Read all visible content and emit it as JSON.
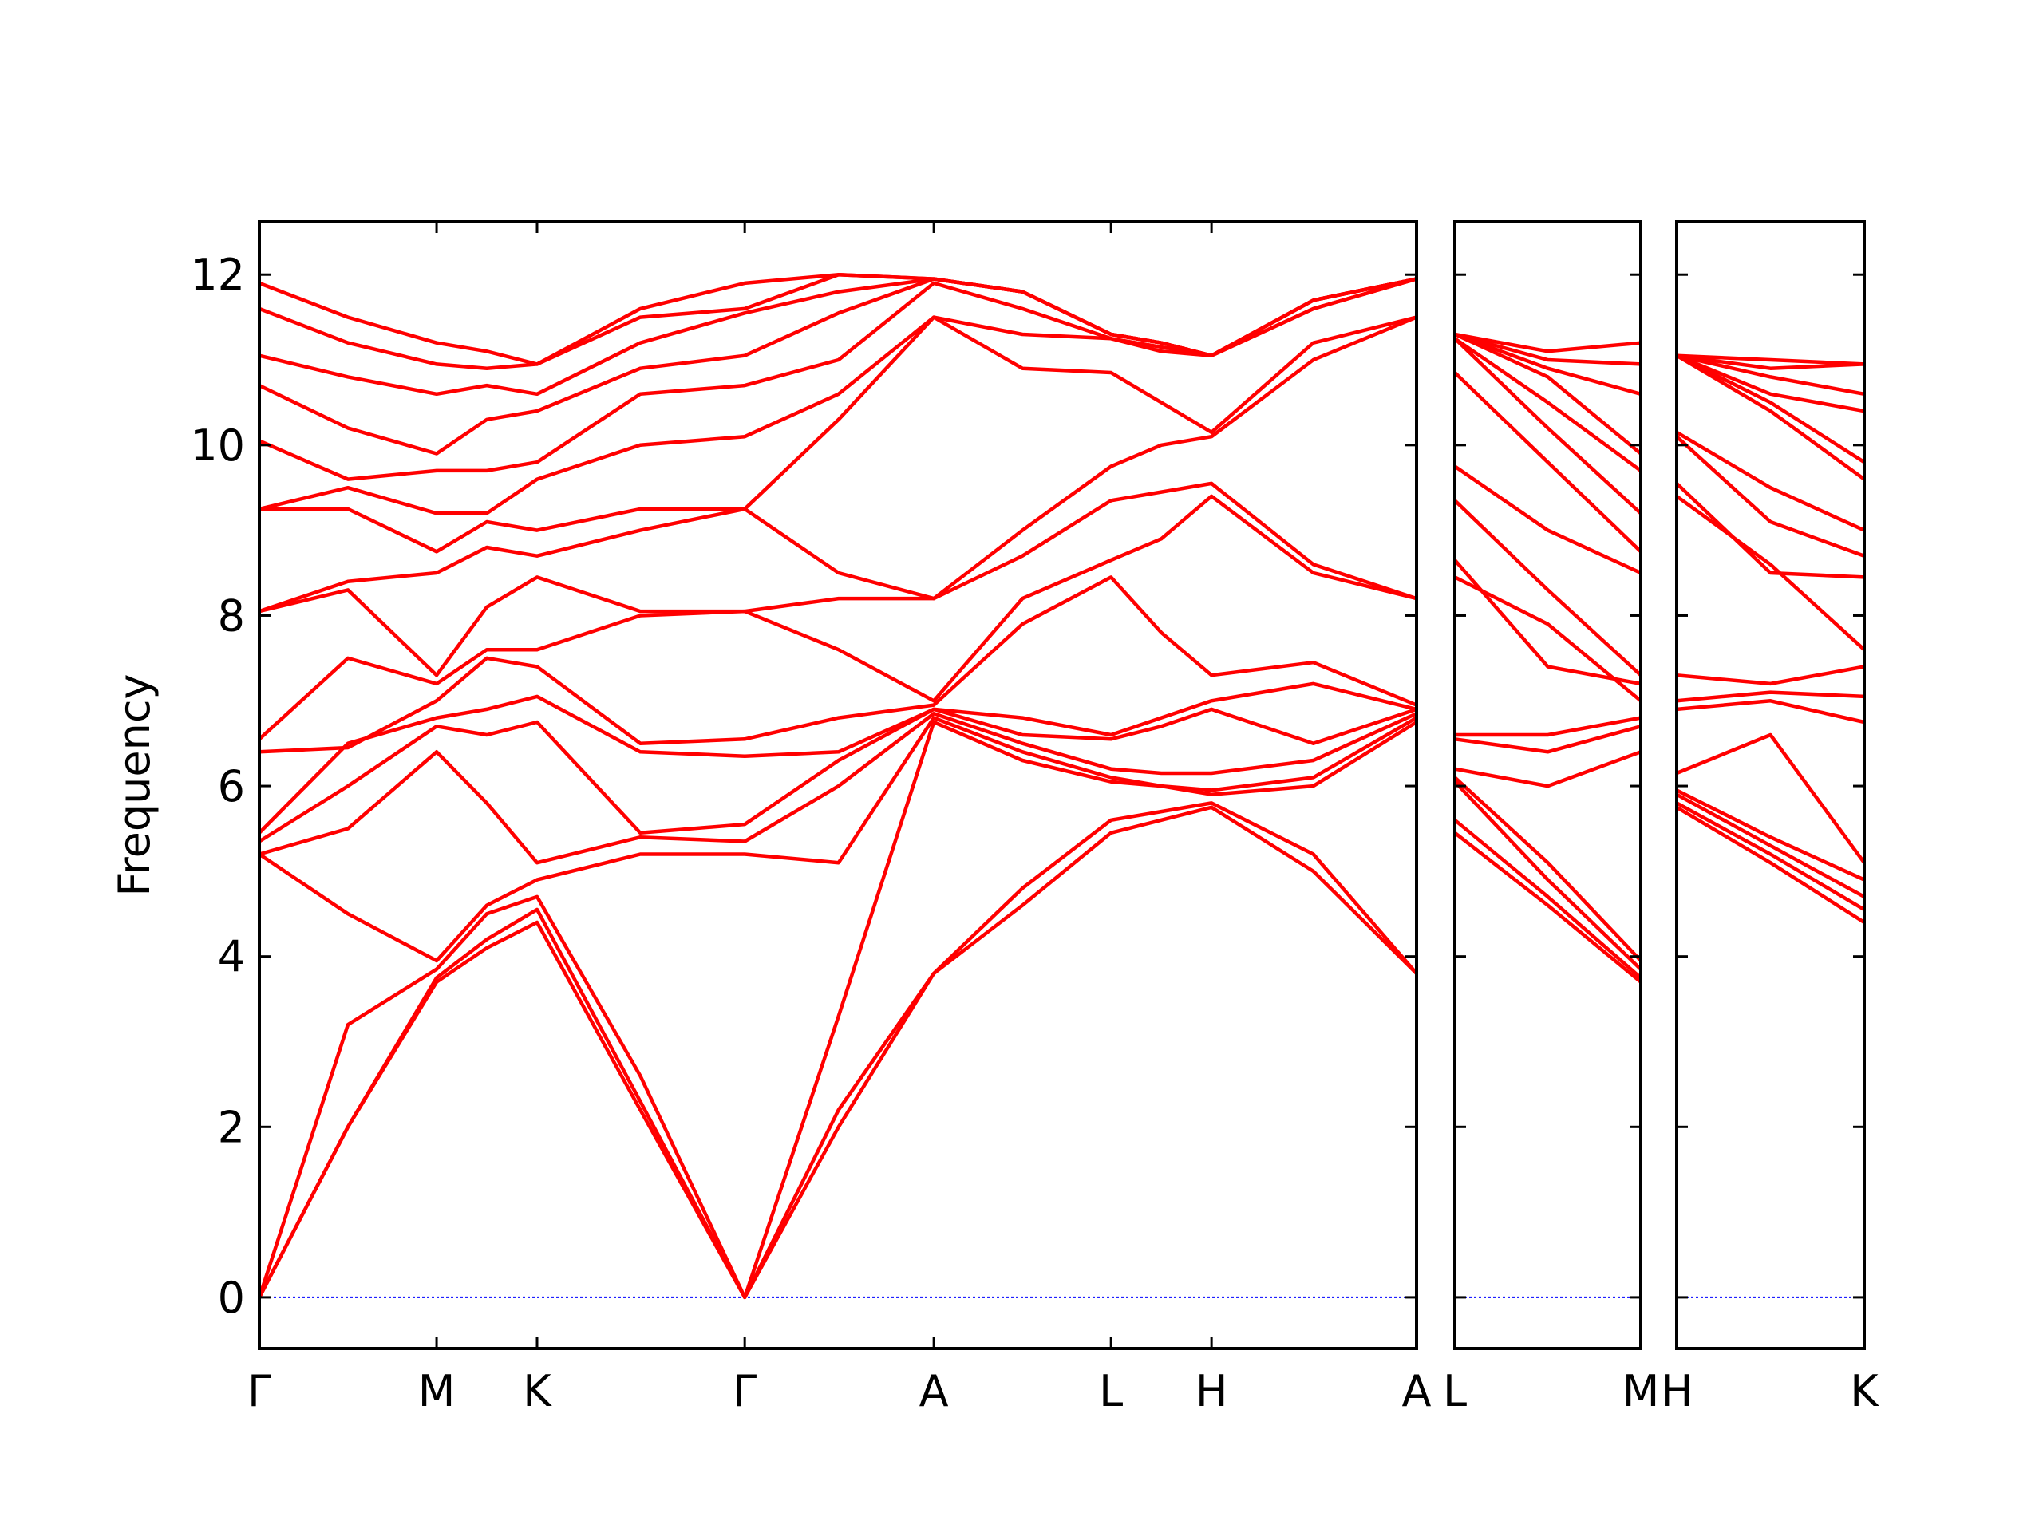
{
  "chart_data": [
    {
      "type": "line",
      "ylabel": "Frequency",
      "color": "#ff0000",
      "zero_line_color": "#0000ff",
      "xlim": [
        0,
        8.75
      ],
      "ylim": [
        -0.6,
        12.62
      ],
      "yticks": [
        0,
        2,
        4,
        6,
        8,
        10,
        12
      ],
      "xticks": [
        {
          "value": 0,
          "label": "Γ"
        },
        {
          "value": 1.34,
          "label": "M"
        },
        {
          "value": 2.1,
          "label": "K"
        },
        {
          "value": 3.67,
          "label": "Γ"
        },
        {
          "value": 5.1,
          "label": "A"
        },
        {
          "value": 6.44,
          "label": "L"
        },
        {
          "value": 7.2,
          "label": "H"
        },
        {
          "value": 8.75,
          "label": "A"
        }
      ],
      "x": [
        0,
        0.67,
        1.34,
        1.72,
        2.1,
        2.88,
        3.67,
        4.38,
        5.1,
        5.77,
        6.44,
        6.82,
        7.2,
        7.97,
        8.75
      ],
      "series": [
        {
          "values": [
            0,
            2.0,
            3.7,
            4.1,
            4.4,
            2.2,
            0,
            2.0,
            3.8,
            4.6,
            5.45,
            5.6,
            5.75,
            5.0,
            3.8
          ]
        },
        {
          "values": [
            0,
            2.0,
            3.75,
            4.2,
            4.55,
            2.3,
            0,
            2.2,
            3.8,
            4.8,
            5.6,
            5.7,
            5.8,
            5.2,
            3.8
          ]
        },
        {
          "values": [
            0,
            3.2,
            3.85,
            4.5,
            4.7,
            2.6,
            0,
            3.3,
            6.75,
            6.3,
            6.05,
            6.0,
            5.9,
            6.0,
            6.75
          ]
        },
        {
          "values": [
            5.2,
            4.5,
            3.95,
            4.6,
            4.9,
            5.2,
            5.2,
            5.1,
            6.8,
            6.4,
            6.1,
            6.0,
            5.95,
            6.1,
            6.8
          ]
        },
        {
          "values": [
            5.2,
            5.5,
            6.4,
            5.8,
            5.1,
            5.4,
            5.35,
            6.0,
            6.85,
            6.5,
            6.2,
            6.15,
            6.15,
            6.3,
            6.85
          ]
        },
        {
          "values": [
            5.35,
            6.0,
            6.7,
            6.6,
            6.75,
            5.45,
            5.55,
            6.3,
            6.9,
            6.6,
            6.55,
            6.7,
            6.9,
            6.5,
            6.9
          ]
        },
        {
          "values": [
            5.45,
            6.5,
            6.8,
            6.9,
            7.05,
            6.4,
            6.35,
            6.4,
            6.9,
            6.8,
            6.6,
            6.8,
            7.0,
            7.2,
            6.9
          ]
        },
        {
          "values": [
            6.4,
            6.45,
            7.0,
            7.5,
            7.4,
            6.5,
            6.55,
            6.8,
            6.95,
            7.9,
            8.45,
            7.8,
            7.3,
            7.45,
            6.95
          ]
        },
        {
          "values": [
            6.55,
            7.5,
            7.2,
            7.6,
            7.6,
            8.0,
            8.05,
            7.6,
            7.0,
            8.2,
            8.65,
            8.9,
            9.4,
            8.5,
            8.2
          ]
        },
        {
          "values": [
            8.05,
            8.3,
            7.3,
            8.1,
            8.45,
            8.05,
            8.05,
            8.2,
            8.2,
            8.7,
            9.35,
            9.45,
            9.55,
            8.6,
            8.2
          ]
        },
        {
          "values": [
            8.05,
            8.4,
            8.5,
            8.8,
            8.7,
            9.0,
            9.25,
            8.5,
            8.2,
            9.0,
            9.75,
            10.0,
            10.1,
            11.0,
            11.5
          ]
        },
        {
          "values": [
            9.25,
            9.25,
            8.75,
            9.1,
            9.0,
            9.25,
            9.25,
            10.3,
            11.5,
            10.9,
            10.85,
            10.5,
            10.15,
            11.2,
            11.5
          ]
        },
        {
          "values": [
            9.25,
            9.5,
            9.2,
            9.2,
            9.6,
            10.0,
            10.1,
            10.6,
            11.5,
            11.3,
            11.25,
            11.1,
            11.05,
            11.6,
            11.95
          ]
        },
        {
          "values": [
            10.05,
            9.6,
            9.7,
            9.7,
            9.8,
            10.6,
            10.7,
            11.0,
            11.9,
            11.6,
            11.25,
            11.15,
            11.05,
            11.6,
            11.95
          ]
        },
        {
          "values": [
            10.7,
            10.2,
            9.9,
            10.3,
            10.4,
            10.9,
            11.05,
            11.55,
            11.95,
            11.8,
            11.3,
            11.2,
            11.05,
            11.7,
            11.95
          ]
        },
        {
          "values": [
            11.05,
            10.8,
            10.6,
            10.7,
            10.6,
            11.2,
            11.55,
            11.8,
            11.95,
            11.8,
            11.3,
            11.2,
            11.05,
            11.7,
            11.95
          ]
        },
        {
          "values": [
            11.6,
            11.2,
            10.95,
            10.9,
            10.95,
            11.5,
            11.6,
            12.0,
            11.95,
            11.8,
            11.3,
            11.2,
            11.05,
            11.7,
            11.95
          ]
        },
        {
          "values": [
            11.9,
            11.5,
            11.2,
            11.1,
            10.95,
            11.6,
            11.9,
            12.0,
            11.95,
            11.8,
            11.3,
            11.2,
            11.05,
            11.7,
            11.95
          ]
        }
      ]
    },
    {
      "type": "line",
      "color": "#ff0000",
      "zero_line_color": "#0000ff",
      "xlim": [
        0,
        1.42
      ],
      "ylim": [
        -0.6,
        12.62
      ],
      "yticks": [
        0,
        2,
        4,
        6,
        8,
        10,
        12
      ],
      "xticks": [
        {
          "value": 0,
          "label": "L"
        },
        {
          "value": 1.42,
          "label": "M"
        }
      ],
      "x": [
        0,
        0.71,
        1.42
      ],
      "series": [
        {
          "values": [
            5.45,
            4.6,
            3.7
          ]
        },
        {
          "values": [
            5.6,
            4.7,
            3.75
          ]
        },
        {
          "values": [
            6.05,
            4.9,
            3.85
          ]
        },
        {
          "values": [
            6.1,
            5.1,
            3.95
          ]
        },
        {
          "values": [
            6.2,
            6.0,
            6.4
          ]
        },
        {
          "values": [
            6.55,
            6.4,
            6.7
          ]
        },
        {
          "values": [
            6.6,
            6.6,
            6.8
          ]
        },
        {
          "values": [
            8.45,
            7.9,
            7.0
          ]
        },
        {
          "values": [
            8.65,
            7.4,
            7.2
          ]
        },
        {
          "values": [
            9.35,
            8.3,
            7.3
          ]
        },
        {
          "values": [
            9.75,
            9.0,
            8.5
          ]
        },
        {
          "values": [
            10.85,
            9.8,
            8.75
          ]
        },
        {
          "values": [
            11.25,
            10.2,
            9.2
          ]
        },
        {
          "values": [
            11.25,
            10.5,
            9.7
          ]
        },
        {
          "values": [
            11.3,
            10.8,
            9.9
          ]
        },
        {
          "values": [
            11.3,
            10.9,
            10.6
          ]
        },
        {
          "values": [
            11.3,
            11.0,
            10.95
          ]
        },
        {
          "values": [
            11.3,
            11.1,
            11.2
          ]
        }
      ]
    },
    {
      "type": "line",
      "color": "#ff0000",
      "zero_line_color": "#0000ff",
      "xlim": [
        0,
        1.43
      ],
      "ylim": [
        -0.6,
        12.62
      ],
      "yticks": [
        0,
        2,
        4,
        6,
        8,
        10,
        12
      ],
      "xticks": [
        {
          "value": 0,
          "label": "H"
        },
        {
          "value": 1.43,
          "label": "K"
        }
      ],
      "x": [
        0,
        0.715,
        1.43
      ],
      "series": [
        {
          "values": [
            5.75,
            5.1,
            4.4
          ]
        },
        {
          "values": [
            5.8,
            5.2,
            4.55
          ]
        },
        {
          "values": [
            5.9,
            5.3,
            4.7
          ]
        },
        {
          "values": [
            5.95,
            5.4,
            4.9
          ]
        },
        {
          "values": [
            6.15,
            6.6,
            5.1
          ]
        },
        {
          "values": [
            6.9,
            7.0,
            6.75
          ]
        },
        {
          "values": [
            7.0,
            7.1,
            7.05
          ]
        },
        {
          "values": [
            7.3,
            7.2,
            7.4
          ]
        },
        {
          "values": [
            9.4,
            8.6,
            7.6
          ]
        },
        {
          "values": [
            9.55,
            8.5,
            8.45
          ]
        },
        {
          "values": [
            10.1,
            9.1,
            8.7
          ]
        },
        {
          "values": [
            10.15,
            9.5,
            9.0
          ]
        },
        {
          "values": [
            11.05,
            10.4,
            9.6
          ]
        },
        {
          "values": [
            11.05,
            10.5,
            9.8
          ]
        },
        {
          "values": [
            11.05,
            10.6,
            10.4
          ]
        },
        {
          "values": [
            11.05,
            10.8,
            10.6
          ]
        },
        {
          "values": [
            11.05,
            10.9,
            10.95
          ]
        },
        {
          "values": [
            11.05,
            11.0,
            10.95
          ]
        }
      ]
    }
  ]
}
